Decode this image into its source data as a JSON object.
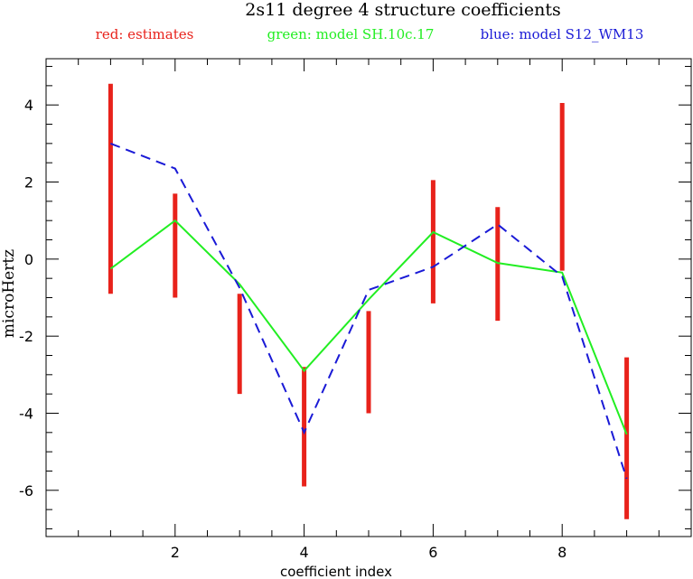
{
  "chart_data": {
    "type": "line",
    "title": "2s11 degree 4 structure coefficients",
    "legend": [
      {
        "label": "red: estimates",
        "color": "#e8221b"
      },
      {
        "label": "green: model SH.10c.17",
        "color": "#22ee22"
      },
      {
        "label": "blue: model S12_WM13",
        "color": "#1a1ad6"
      }
    ],
    "xlabel": "coefficient index",
    "ylabel": "microHertz",
    "xlim": [
      0,
      10
    ],
    "ylim": [
      -7.2,
      5.2
    ],
    "xticks": [
      2,
      4,
      6,
      8
    ],
    "yticks": [
      4,
      2,
      0,
      -2,
      -4,
      -6
    ],
    "xtick_labels": [
      "2",
      "4",
      "6",
      "8"
    ],
    "ytick_labels": [
      "4",
      "2",
      "0",
      "-2",
      "-4",
      "-6"
    ],
    "estimates": [
      {
        "x": 1,
        "low": -0.9,
        "high": 4.55
      },
      {
        "x": 2,
        "low": -1.0,
        "high": 1.7
      },
      {
        "x": 3,
        "low": -3.5,
        "high": -0.9
      },
      {
        "x": 4,
        "low": -5.9,
        "high": -2.8
      },
      {
        "x": 5,
        "low": -4.0,
        "high": -1.35
      },
      {
        "x": 6,
        "low": -1.15,
        "high": 2.05
      },
      {
        "x": 7,
        "low": -1.6,
        "high": 1.35
      },
      {
        "x": 8,
        "low": -0.3,
        "high": 4.05
      },
      {
        "x": 9,
        "low": -6.75,
        "high": -2.55
      }
    ],
    "series": [
      {
        "color": "#22ee22",
        "style": "solid",
        "x": [
          1,
          2,
          3,
          4,
          5,
          6,
          7,
          8,
          9
        ],
        "y": [
          -0.25,
          1.0,
          -0.65,
          -2.9,
          -1.05,
          0.7,
          -0.1,
          -0.35,
          -4.55
        ]
      },
      {
        "color": "#1a1ad6",
        "style": "dashed",
        "x": [
          1,
          2,
          3,
          4,
          5,
          6,
          7,
          8,
          9
        ],
        "y": [
          3.0,
          2.35,
          -0.75,
          -4.5,
          -0.8,
          -0.2,
          0.9,
          -0.45,
          -5.7
        ]
      }
    ]
  }
}
